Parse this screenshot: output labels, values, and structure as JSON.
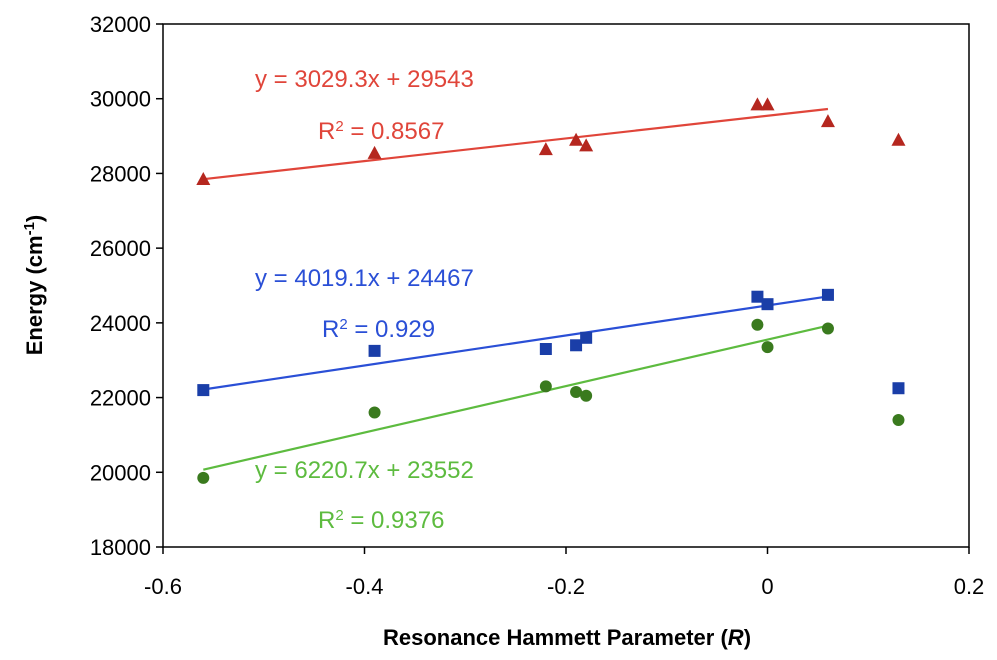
{
  "chart_data": {
    "type": "scatter",
    "title": "",
    "xlabel": "Resonance Hammett Parameter (",
    "xlabel_var": "R",
    "xlabel_end": ")",
    "ylabel": "Energy (cm",
    "ylabel_sup": "-1",
    "ylabel_end": ")",
    "xlim": [
      -0.6,
      0.2
    ],
    "ylim": [
      18000,
      32000
    ],
    "x_ticks": [
      -0.6,
      -0.4,
      -0.2,
      0,
      0.2
    ],
    "x_tick_labels": [
      "-0.6",
      "-0.4",
      "-0.2",
      "0",
      "0.2"
    ],
    "y_ticks": [
      18000,
      20000,
      22000,
      24000,
      26000,
      28000,
      30000,
      32000
    ],
    "y_tick_labels": [
      "18000",
      "20000",
      "22000",
      "24000",
      "26000",
      "28000",
      "30000",
      "32000"
    ],
    "grid": false,
    "legend": "none",
    "series": [
      {
        "marker": "triangle",
        "color": "#b5271f",
        "line_color": "#e0453a",
        "points": [
          {
            "x": -0.56,
            "y": 27850
          },
          {
            "x": -0.39,
            "y": 28550
          },
          {
            "x": -0.22,
            "y": 28650
          },
          {
            "x": -0.19,
            "y": 28900
          },
          {
            "x": -0.18,
            "y": 28750
          },
          {
            "x": -0.01,
            "y": 29850
          },
          {
            "x": 0.0,
            "y": 29850
          },
          {
            "x": 0.06,
            "y": 29400
          },
          {
            "x": 0.13,
            "y": 28900
          }
        ],
        "fit": {
          "slope": 3029.3,
          "intercept": 29543,
          "x_range": [
            -0.56,
            0.06
          ]
        },
        "equation": "y = 3029.3x + 29543",
        "r2_prefix": "R",
        "r2_sup": "2",
        "r2_value": " = 0.8567"
      },
      {
        "marker": "square",
        "color": "#1a3ea8",
        "line_color": "#2a4fd6",
        "points": [
          {
            "x": -0.56,
            "y": 22200
          },
          {
            "x": -0.39,
            "y": 23250
          },
          {
            "x": -0.22,
            "y": 23300
          },
          {
            "x": -0.19,
            "y": 23400
          },
          {
            "x": -0.18,
            "y": 23600
          },
          {
            "x": -0.01,
            "y": 24700
          },
          {
            "x": 0.0,
            "y": 24500
          },
          {
            "x": 0.06,
            "y": 24750
          },
          {
            "x": 0.13,
            "y": 22250
          }
        ],
        "fit": {
          "slope": 4019.1,
          "intercept": 24467,
          "x_range": [
            -0.56,
            0.06
          ]
        },
        "equation": "y = 4019.1x + 24467",
        "r2_prefix": "R",
        "r2_sup": "2",
        "r2_value": " = 0.929"
      },
      {
        "marker": "circle",
        "color": "#3a7a1e",
        "line_color": "#5dbb3f",
        "points": [
          {
            "x": -0.56,
            "y": 19850
          },
          {
            "x": -0.39,
            "y": 21600
          },
          {
            "x": -0.22,
            "y": 22300
          },
          {
            "x": -0.19,
            "y": 22150
          },
          {
            "x": -0.18,
            "y": 22050
          },
          {
            "x": -0.01,
            "y": 23950
          },
          {
            "x": 0.0,
            "y": 23350
          },
          {
            "x": 0.06,
            "y": 23850
          },
          {
            "x": 0.13,
            "y": 21400
          }
        ],
        "fit": {
          "slope": 6220.7,
          "intercept": 23552,
          "x_range": [
            -0.56,
            0.06
          ]
        },
        "equation": "y = 6220.7x + 23552",
        "r2_prefix": "R",
        "r2_sup": "2",
        "r2_value": " = 0.9376"
      }
    ]
  }
}
